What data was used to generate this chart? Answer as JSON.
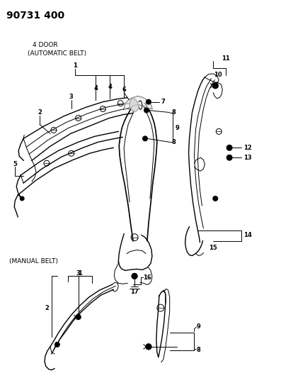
{
  "title": "90731 400",
  "bg_color": "#ffffff",
  "line_color": "#000000",
  "title_fontsize": 10,
  "label_fontsize": 6.0,
  "sections": {
    "top_label1": "4 DOOR",
    "top_label2": "(AUTOMATIC BELT)",
    "bottom_label": "(MANUAL BELT)"
  }
}
